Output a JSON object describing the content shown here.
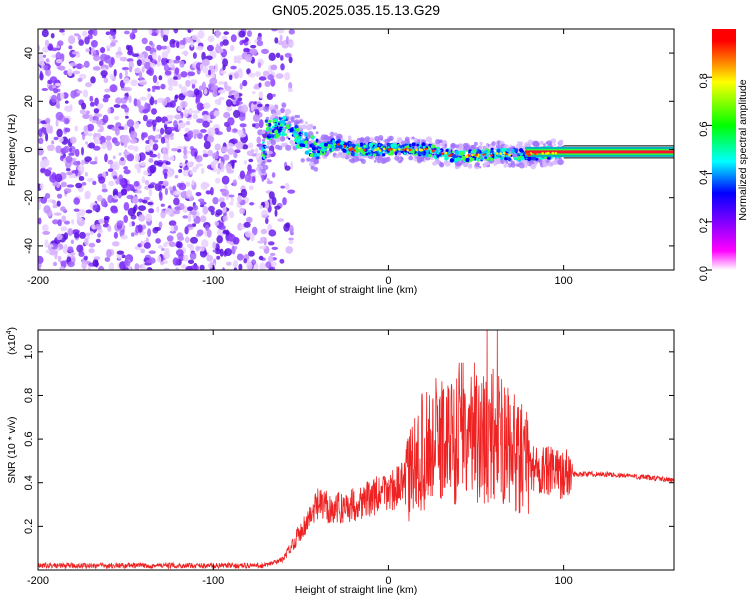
{
  "title": "GN05.2025.035.15.13.G29",
  "chart_data": [
    {
      "type": "heatmap",
      "xlabel": "Height of straight line (km)",
      "ylabel": "Frequency (Hz)",
      "xlim": [
        -200,
        163
      ],
      "ylim": [
        -50,
        50
      ],
      "xticks": [
        -200,
        -100,
        0,
        100
      ],
      "yticks": [
        -40,
        -20,
        0,
        20,
        40
      ],
      "colorbar": {
        "label": "Normalized spectral amplitude",
        "range": [
          0,
          1
        ],
        "ticks": [
          "0.0",
          "0.2",
          "0.4",
          "0.6",
          "0.8"
        ],
        "colormap": [
          "#ffffff",
          "#ff00ff",
          "#7f00ff",
          "#0000ff",
          "#00ffff",
          "#00ff00",
          "#ffff00",
          "#ff0000"
        ]
      },
      "features": {
        "noise_region_x": [
          -200,
          -65
        ],
        "signal_trace": [
          {
            "x": -70,
            "y": 8
          },
          {
            "x": -60,
            "y": 10
          },
          {
            "x": -50,
            "y": 4
          },
          {
            "x": -40,
            "y": 0
          },
          {
            "x": -30,
            "y": 2
          },
          {
            "x": -20,
            "y": 0
          },
          {
            "x": -10,
            "y": 0
          },
          {
            "x": 0,
            "y": 0
          },
          {
            "x": 10,
            "y": 0
          },
          {
            "x": 20,
            "y": 0
          },
          {
            "x": 40,
            "y": -3
          },
          {
            "x": 60,
            "y": -2
          },
          {
            "x": 80,
            "y": -2
          },
          {
            "x": 100,
            "y": -1
          },
          {
            "x": 163,
            "y": -1
          }
        ]
      }
    },
    {
      "type": "line",
      "xlabel": "Height of straight line (km)",
      "ylabel": "SNR (10 * v/v)",
      "yscale_note": "(x10^4)",
      "xlim": [
        -200,
        163
      ],
      "ylim": [
        0,
        1.1
      ],
      "xticks": [
        -200,
        -100,
        0,
        100
      ],
      "yticks": [
        0.2,
        0.4,
        0.6,
        0.8,
        1.0
      ],
      "line_color": "#ee2222",
      "series": [
        {
          "points": [
            [
              -200,
              0.02
            ],
            [
              -150,
              0.02
            ],
            [
              -100,
              0.02
            ],
            [
              -70,
              0.02
            ],
            [
              -60,
              0.05
            ],
            [
              -50,
              0.18
            ],
            [
              -40,
              0.3
            ],
            [
              -30,
              0.28
            ],
            [
              -20,
              0.3
            ],
            [
              -10,
              0.33
            ],
            [
              0,
              0.36
            ],
            [
              10,
              0.4
            ],
            [
              20,
              0.55
            ],
            [
              30,
              0.6
            ],
            [
              40,
              0.6
            ],
            [
              50,
              0.6
            ],
            [
              60,
              0.62
            ],
            [
              70,
              0.55
            ],
            [
              80,
              0.48
            ],
            [
              90,
              0.45
            ],
            [
              100,
              0.44
            ],
            [
              110,
              0.44
            ],
            [
              120,
              0.44
            ],
            [
              140,
              0.43
            ],
            [
              163,
              0.41
            ]
          ]
        }
      ]
    }
  ]
}
